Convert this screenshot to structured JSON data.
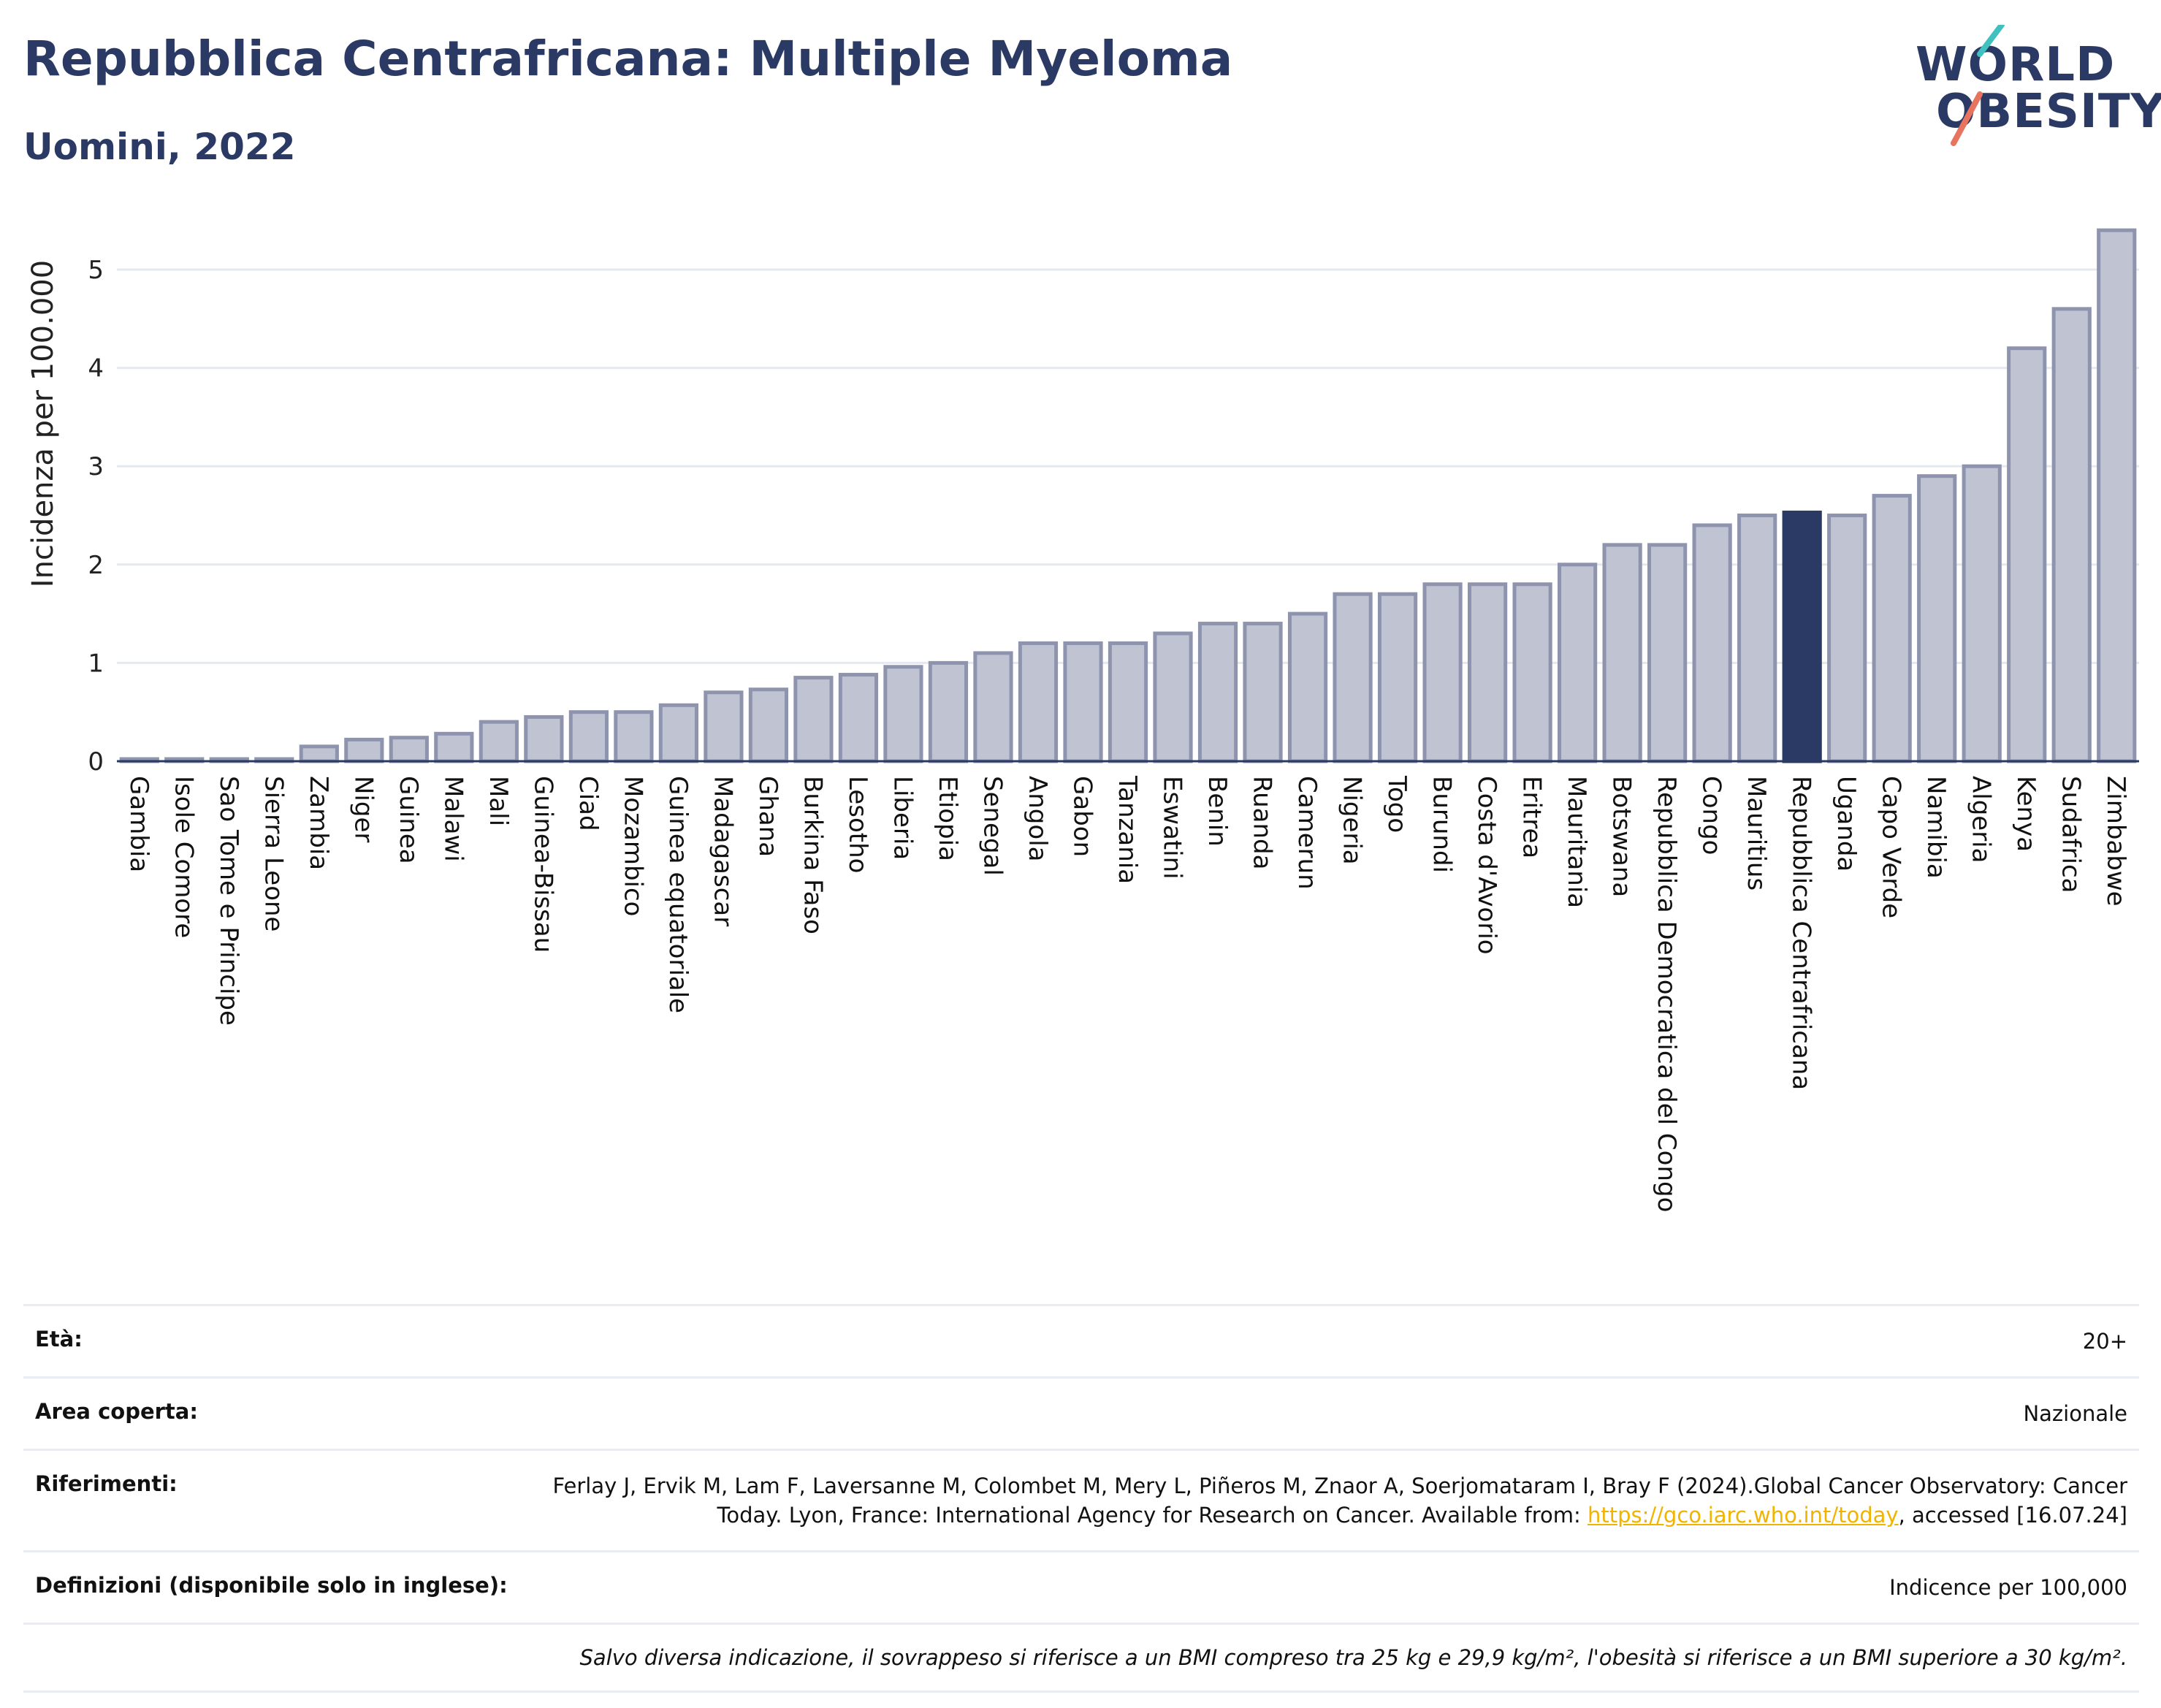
{
  "header": {
    "title": "Repubblica Centrafricana: Multiple Myeloma",
    "subtitle": "Uomini, 2022",
    "logo_line1": "WORLD",
    "logo_line2": "OBESITY"
  },
  "colors": {
    "title": "#2b3a64",
    "bar_fill": "#bfc3d2",
    "bar_stroke": "#8e94ad",
    "highlight": "#2b3a64",
    "grid": "#e6e8ef",
    "link": "#f0b400",
    "logo_teal": "#3fc1c0",
    "logo_coral": "#e8735e"
  },
  "chart_data": {
    "type": "bar",
    "ylabel": "Incidenza per 100.000",
    "xlabel": "",
    "ylim": [
      0,
      5.5
    ],
    "yticks": [
      0,
      1,
      2,
      3,
      4,
      5
    ],
    "grid": true,
    "highlight_category": "Repubblica Centrafricana",
    "categories": [
      "Gambia",
      "Isole Comore",
      "Sao Tome e Principe",
      "Sierra Leone",
      "Zambia",
      "Niger",
      "Guinea",
      "Malawi",
      "Mali",
      "Guinea-Bissau",
      "Ciad",
      "Mozambico",
      "Guinea equatoriale",
      "Madagascar",
      "Ghana",
      "Burkina Faso",
      "Lesotho",
      "Liberia",
      "Etiopia",
      "Senegal",
      "Angola",
      "Gabon",
      "Tanzania",
      "Eswatini",
      "Benin",
      "Ruanda",
      "Camerun",
      "Nigeria",
      "Togo",
      "Burundi",
      "Costa d'Avorio",
      "Eritrea",
      "Mauritania",
      "Botswana",
      "Repubblica Democratica del Congo",
      "Congo",
      "Mauritius",
      "Repubblica Centrafricana",
      "Uganda",
      "Capo Verde",
      "Namibia",
      "Algeria",
      "Kenya",
      "Sudafrica",
      "Zimbabwe"
    ],
    "values": [
      0.02,
      0.02,
      0.02,
      0.02,
      0.15,
      0.22,
      0.24,
      0.28,
      0.4,
      0.45,
      0.5,
      0.5,
      0.57,
      0.7,
      0.73,
      0.85,
      0.88,
      0.96,
      1.0,
      1.1,
      1.2,
      1.2,
      1.2,
      1.3,
      1.4,
      1.4,
      1.5,
      1.7,
      1.7,
      1.8,
      1.8,
      1.8,
      2.0,
      2.2,
      2.2,
      2.4,
      2.5,
      2.53,
      2.5,
      2.7,
      2.9,
      3.0,
      4.2,
      4.6,
      5.4
    ]
  },
  "info": {
    "eta_label": "Età:",
    "eta_value": "20+",
    "area_label": "Area coperta:",
    "area_value": "Nazionale",
    "rif_label": "Riferimenti:",
    "rif_text": "Ferlay J, Ervik M, Lam F, Laversanne M, Colombet M, Mery L, Piñeros M, Znaor A, Soerjomataram I, Bray F (2024).Global Cancer Observatory: Cancer Today. Lyon, France: International Agency for Research on Cancer. Available from: ",
    "rif_link": "https://gco.iarc.who.int/today",
    "rif_after": ", accessed [16.07.24]",
    "def_label": "Definizioni (disponibile solo in inglese):",
    "def_value": "Indicence per 100,000",
    "note": "Salvo diversa indicazione, il sovrappeso si riferisce a un BMI compreso tra 25 kg e 29,9 kg/m², l'obesità si riferisce a un BMI superiore a 30 kg/m²."
  }
}
